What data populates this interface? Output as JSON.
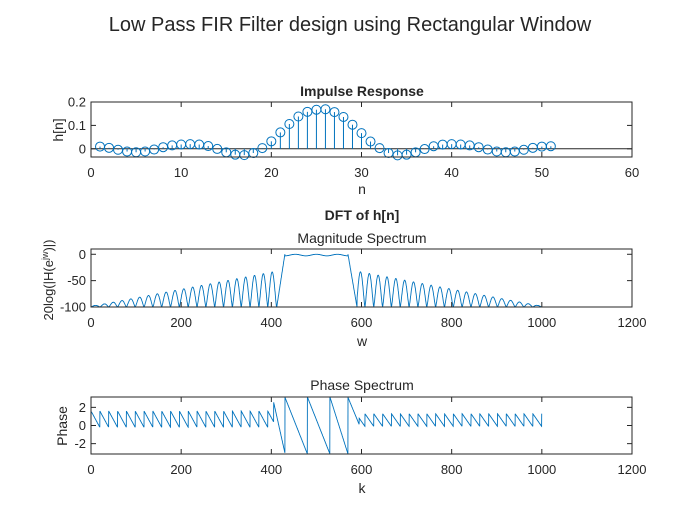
{
  "figure": {
    "title": "Low Pass FIR Filter design using Rectangular Window"
  },
  "chart_data": [
    {
      "id": "impulse",
      "type": "stem",
      "title": "Impulse Response",
      "title_bold": true,
      "xlabel": "n",
      "ylabel": "h[n]",
      "xlim": [
        0,
        60
      ],
      "ylim": [
        -0.035,
        0.2
      ],
      "xticks": [
        0,
        10,
        20,
        30,
        40,
        50,
        60
      ],
      "yticks": [
        0,
        0.1,
        0.2
      ],
      "xtick_labels": [
        "0",
        "10",
        "20",
        "30",
        "40",
        "50",
        "60"
      ],
      "ytick_labels": [
        "0",
        "0.1",
        "0.2"
      ],
      "color": "#0072BD",
      "baseline": 0,
      "grid": false,
      "x": [
        1,
        2,
        3,
        4,
        5,
        6,
        7,
        8,
        9,
        10,
        11,
        12,
        13,
        14,
        15,
        16,
        17,
        18,
        19,
        20,
        21,
        22,
        23,
        24,
        25,
        26,
        27,
        28,
        29,
        30,
        31,
        32,
        33,
        34,
        35,
        36,
        37,
        38,
        39,
        40,
        41,
        42,
        43,
        44,
        45,
        46,
        47,
        48,
        49,
        50,
        51
      ],
      "values": [
        0.0095,
        0.0042,
        -0.0041,
        -0.0117,
        -0.0148,
        -0.0115,
        -0.0031,
        0.0068,
        0.0145,
        0.0185,
        0.02,
        0.0182,
        0.0118,
        -0.0005,
        -0.015,
        -0.025,
        -0.027,
        -0.018,
        0.003,
        0.032,
        0.07,
        0.106,
        0.138,
        0.158,
        0.167,
        0.169,
        0.157,
        0.136,
        0.103,
        0.067,
        0.031,
        0.003,
        -0.018,
        -0.028,
        -0.025,
        -0.015,
        -0.001,
        0.011,
        0.018,
        0.02,
        0.0185,
        0.0145,
        0.0068,
        -0.0031,
        -0.0115,
        -0.0148,
        -0.0117,
        -0.0041,
        0.0042,
        0.0095,
        0.011
      ]
    },
    {
      "id": "magnitude",
      "type": "line",
      "suptitle": "DFT of h[n]",
      "title": "Magnitude Spectrum",
      "title_bold": false,
      "xlabel": "w",
      "ylabel": "20log(|H(e^{jw})|)",
      "xlim": [
        0,
        1200
      ],
      "ylim": [
        -100,
        10
      ],
      "xticks": [
        0,
        200,
        400,
        600,
        800,
        1000,
        1200
      ],
      "yticks": [
        -100,
        -50,
        0
      ],
      "xtick_labels": [
        "0",
        "200",
        "400",
        "600",
        "800",
        "1000",
        "1200"
      ],
      "ytick_labels": [
        "-100",
        "-50",
        "0"
      ],
      "color": "#0072BD",
      "grid": false,
      "n_points": 1000,
      "passband": [
        430,
        570
      ],
      "transition_edges": [
        412,
        590
      ],
      "lobe_period": 19.6,
      "lobe_peak_db": [
        -97,
        -32
      ],
      "passband_db": [
        -3,
        0
      ]
    },
    {
      "id": "phase",
      "type": "line",
      "title": "Phase Spectrum",
      "title_bold": false,
      "xlabel": "k",
      "ylabel": "Phase",
      "xlim": [
        0,
        1200
      ],
      "ylim": [
        -3.1416,
        3.1416
      ],
      "xticks": [
        0,
        200,
        400,
        600,
        800,
        1000,
        1200
      ],
      "yticks": [
        -2,
        0,
        2
      ],
      "xtick_labels": [
        "0",
        "200",
        "400",
        "600",
        "800",
        "1000",
        "1200"
      ],
      "ytick_labels": [
        "-2",
        "0",
        "2"
      ],
      "color": "#0072BD",
      "grid": false,
      "n_points": 1000,
      "sawtooth_period": 19.6,
      "sawtooth_range_low_left": [
        -0.2,
        1.6
      ],
      "sawtooth_range_low_right": [
        -0.1,
        1.3
      ],
      "passband": [
        430,
        570
      ],
      "passband_wraps": [
        430,
        480,
        530,
        570
      ]
    }
  ]
}
